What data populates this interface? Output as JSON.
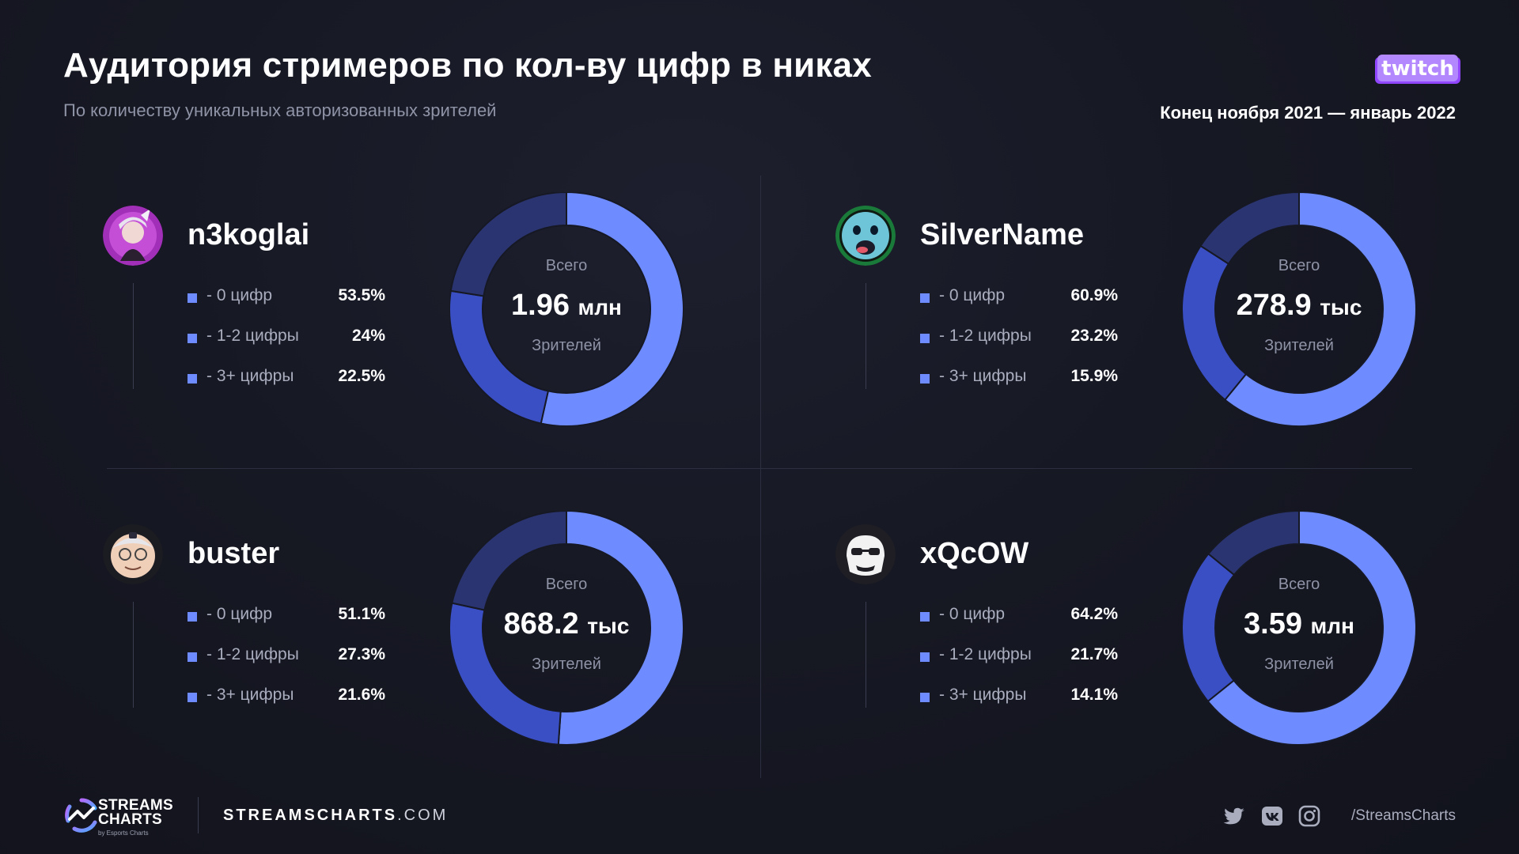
{
  "header": {
    "title": "Аудитория стримеров по кол-ву цифр в никах",
    "subtitle": "По количеству уникальных авторизованных зрителей",
    "period": "Конец ноября 2021 — январь 2022",
    "brand_logo": "twitch-logo"
  },
  "donut_labels": {
    "top": "Всего",
    "bottom": "Зрителей"
  },
  "colors": {
    "zero_digits": "#6e8cff",
    "one_two_digits": "#3a4fc4",
    "three_plus_digits": "#2a3470",
    "background": "#161823"
  },
  "chart_data": [
    {
      "type": "pie",
      "streamer": "n3koglai",
      "total_value": "1.96",
      "total_unit": "млн",
      "categories": [
        "- 0 цифр",
        "- 1-2 цифры",
        "- 3+ цифры"
      ],
      "values": [
        53.5,
        24,
        22.5
      ],
      "value_labels": [
        "53.5%",
        "24%",
        "22.5%"
      ]
    },
    {
      "type": "pie",
      "streamer": "SilverName",
      "total_value": "278.9",
      "total_unit": "тыс",
      "categories": [
        "- 0 цифр",
        "- 1-2 цифры",
        "- 3+ цифры"
      ],
      "values": [
        60.9,
        23.2,
        15.9
      ],
      "value_labels": [
        "60.9%",
        "23.2%",
        "15.9%"
      ]
    },
    {
      "type": "pie",
      "streamer": "buster",
      "total_value": "868.2",
      "total_unit": "тыс",
      "categories": [
        "- 0 цифр",
        "- 1-2 цифры",
        "- 3+ цифры"
      ],
      "values": [
        51.1,
        27.3,
        21.6
      ],
      "value_labels": [
        "51.1%",
        "27.3%",
        "21.6%"
      ]
    },
    {
      "type": "pie",
      "streamer": "xQcOW",
      "total_value": "3.59",
      "total_unit": "млн",
      "categories": [
        "- 0 цифр",
        "- 1-2 цифры",
        "- 3+ цифры"
      ],
      "values": [
        64.2,
        21.7,
        14.1
      ],
      "value_labels": [
        "64.2%",
        "21.7%",
        "14.1%"
      ]
    }
  ],
  "footer": {
    "brand_line1": "STREAMS",
    "brand_line2": "CHARTS",
    "brand_by": "by Esports Charts",
    "site_bold": "STREAMSCHARTS",
    "site_tld": ".COM",
    "social_icons": [
      "twitter-icon",
      "vk-icon",
      "instagram-icon"
    ],
    "handle": "/StreamsCharts"
  }
}
